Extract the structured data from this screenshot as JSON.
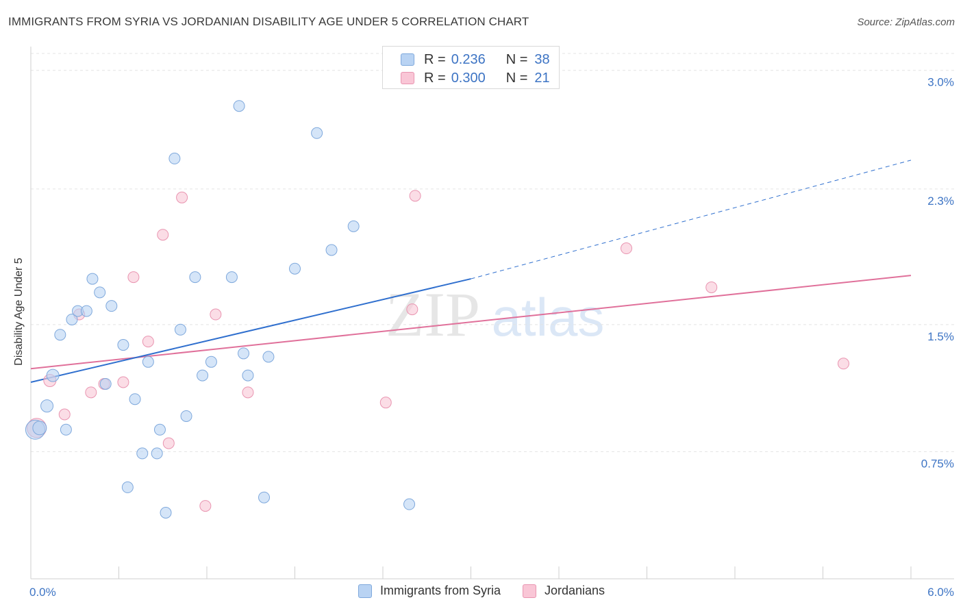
{
  "header": {
    "title": "IMMIGRANTS FROM SYRIA VS JORDANIAN DISABILITY AGE UNDER 5 CORRELATION CHART",
    "source": "Source: ZipAtlas.com"
  },
  "watermark": {
    "zip": "ZIP",
    "atlas": "atlas"
  },
  "legend_top": {
    "rows": [
      {
        "r_label": "R =",
        "r_value": "0.236",
        "n_label": "N =",
        "n_value": "38"
      },
      {
        "r_label": "R =",
        "r_value": "0.300",
        "n_label": "N =",
        "n_value": "21"
      }
    ]
  },
  "colors": {
    "blue_fill": "#b9d3f3",
    "blue_stroke": "#7ea8dc",
    "blue_line": "#2f6fce",
    "pink_fill": "#f9c6d6",
    "pink_stroke": "#e994b0",
    "pink_line": "#e0709a",
    "tick_label": "#3d74c4"
  },
  "chart_data": {
    "type": "scatter",
    "title": "IMMIGRANTS FROM SYRIA VS JORDANIAN DISABILITY AGE UNDER 5 CORRELATION CHART",
    "xlabel": "",
    "ylabel": "Disability Age Under 5",
    "xlim": [
      0.0,
      6.0
    ],
    "ylim": [
      0.0,
      3.1
    ],
    "x_tick_labels": [
      "0.0%",
      "6.0%"
    ],
    "y_ticks": [
      0.75,
      1.5,
      2.3,
      3.0
    ],
    "y_tick_labels": [
      "0.75%",
      "1.5%",
      "2.3%",
      "3.0%"
    ],
    "grid": true,
    "legend_position": "top-center",
    "series": [
      {
        "name": "Immigrants from Syria",
        "color": "#b9d3f3",
        "r": "0.236",
        "n": "38",
        "trend": {
          "x": [
            0.0,
            3.0
          ],
          "y": [
            1.16,
            1.77
          ],
          "dashed_to": [
            6.0,
            2.47
          ]
        },
        "points": [
          {
            "x": 0.03,
            "y": 0.88,
            "size": 14
          },
          {
            "x": 0.06,
            "y": 0.89,
            "size": 10
          },
          {
            "x": 0.11,
            "y": 1.02,
            "size": 9
          },
          {
            "x": 0.15,
            "y": 1.2,
            "size": 9
          },
          {
            "x": 0.2,
            "y": 1.44,
            "size": 8
          },
          {
            "x": 0.24,
            "y": 0.88,
            "size": 8
          },
          {
            "x": 0.28,
            "y": 1.53,
            "size": 8
          },
          {
            "x": 0.32,
            "y": 1.58,
            "size": 8
          },
          {
            "x": 0.38,
            "y": 1.58,
            "size": 8
          },
          {
            "x": 0.42,
            "y": 1.77,
            "size": 8
          },
          {
            "x": 0.47,
            "y": 1.69,
            "size": 8
          },
          {
            "x": 0.51,
            "y": 1.15,
            "size": 8
          },
          {
            "x": 0.55,
            "y": 1.61,
            "size": 8
          },
          {
            "x": 0.63,
            "y": 1.38,
            "size": 8
          },
          {
            "x": 0.66,
            "y": 0.54,
            "size": 8
          },
          {
            "x": 0.71,
            "y": 1.06,
            "size": 8
          },
          {
            "x": 0.76,
            "y": 0.74,
            "size": 8
          },
          {
            "x": 0.8,
            "y": 1.28,
            "size": 8
          },
          {
            "x": 0.86,
            "y": 0.74,
            "size": 8
          },
          {
            "x": 0.88,
            "y": 0.88,
            "size": 8
          },
          {
            "x": 0.92,
            "y": 0.39,
            "size": 8
          },
          {
            "x": 0.98,
            "y": 2.48,
            "size": 8
          },
          {
            "x": 1.02,
            "y": 1.47,
            "size": 8
          },
          {
            "x": 1.06,
            "y": 0.96,
            "size": 8
          },
          {
            "x": 1.12,
            "y": 1.78,
            "size": 8
          },
          {
            "x": 1.17,
            "y": 1.2,
            "size": 8
          },
          {
            "x": 1.23,
            "y": 1.28,
            "size": 8
          },
          {
            "x": 1.37,
            "y": 1.78,
            "size": 8
          },
          {
            "x": 1.42,
            "y": 2.79,
            "size": 8
          },
          {
            "x": 1.45,
            "y": 1.33,
            "size": 8
          },
          {
            "x": 1.48,
            "y": 1.2,
            "size": 8
          },
          {
            "x": 1.59,
            "y": 0.48,
            "size": 8
          },
          {
            "x": 1.62,
            "y": 1.31,
            "size": 8
          },
          {
            "x": 1.8,
            "y": 1.83,
            "size": 8
          },
          {
            "x": 1.95,
            "y": 2.63,
            "size": 8
          },
          {
            "x": 2.05,
            "y": 1.94,
            "size": 8
          },
          {
            "x": 2.2,
            "y": 2.08,
            "size": 8
          },
          {
            "x": 2.58,
            "y": 0.44,
            "size": 8
          }
        ]
      },
      {
        "name": "Jordanians",
        "color": "#f9c6d6",
        "r": "0.300",
        "n": "21",
        "trend": {
          "x": [
            0.0,
            6.0
          ],
          "y": [
            1.24,
            1.79
          ]
        },
        "points": [
          {
            "x": 0.04,
            "y": 0.89,
            "size": 14
          },
          {
            "x": 0.13,
            "y": 1.17,
            "size": 9
          },
          {
            "x": 0.23,
            "y": 0.97,
            "size": 8
          },
          {
            "x": 0.33,
            "y": 1.56,
            "size": 8
          },
          {
            "x": 0.41,
            "y": 1.1,
            "size": 8
          },
          {
            "x": 0.5,
            "y": 1.15,
            "size": 8
          },
          {
            "x": 0.63,
            "y": 1.16,
            "size": 8
          },
          {
            "x": 0.7,
            "y": 1.78,
            "size": 8
          },
          {
            "x": 0.8,
            "y": 1.4,
            "size": 8
          },
          {
            "x": 0.9,
            "y": 2.03,
            "size": 8
          },
          {
            "x": 0.94,
            "y": 0.8,
            "size": 8
          },
          {
            "x": 1.03,
            "y": 2.25,
            "size": 8
          },
          {
            "x": 1.19,
            "y": 0.43,
            "size": 8
          },
          {
            "x": 1.26,
            "y": 1.56,
            "size": 8
          },
          {
            "x": 1.48,
            "y": 1.1,
            "size": 8
          },
          {
            "x": 2.42,
            "y": 1.04,
            "size": 8
          },
          {
            "x": 2.6,
            "y": 1.59,
            "size": 8
          },
          {
            "x": 2.62,
            "y": 2.26,
            "size": 8
          },
          {
            "x": 4.06,
            "y": 1.95,
            "size": 8
          },
          {
            "x": 4.64,
            "y": 1.72,
            "size": 8
          },
          {
            "x": 5.54,
            "y": 1.27,
            "size": 8
          }
        ]
      }
    ]
  }
}
